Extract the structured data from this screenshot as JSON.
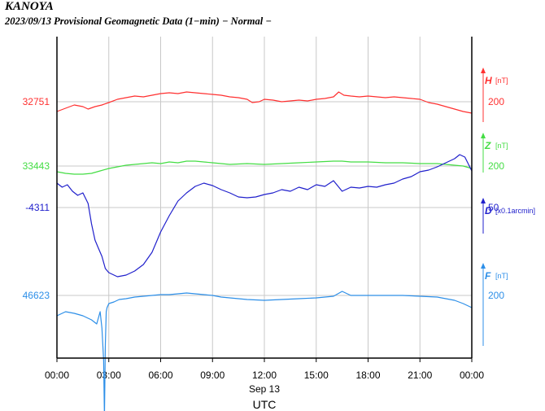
{
  "header": {
    "station": "KANOYA",
    "subtitle": "2023/09/13  Provisional Geomagnetic Data (1−min)  − Normal −"
  },
  "chart_data": {
    "type": "line",
    "x_ticks": [
      "00:00",
      "03:00",
      "06:00",
      "09:00",
      "12:00",
      "15:00",
      "18:00",
      "21:00",
      "00:00"
    ],
    "date_label": "Sep 13",
    "xlabel": "UTC",
    "grid": true,
    "series": [
      {
        "name": "H",
        "unit": "[nT]",
        "color": "#ff3030",
        "left_label": "32751",
        "scale_label": "200",
        "x": [
          0,
          0.5,
          1,
          1.5,
          1.8,
          2.2,
          2.6,
          3,
          3.5,
          4,
          4.5,
          5,
          5.5,
          6,
          6.5,
          7,
          7.5,
          8,
          8.5,
          9,
          9.5,
          10,
          10.5,
          11,
          11.3,
          11.7,
          12,
          12.5,
          13,
          13.5,
          14,
          14.5,
          15,
          15.5,
          16,
          16.3,
          16.6,
          17,
          17.5,
          18,
          18.5,
          19,
          19.5,
          20,
          20.5,
          21,
          21.5,
          22,
          22.5,
          23,
          23.5,
          24
        ],
        "y": [
          -12,
          -8,
          -4,
          -6,
          -9,
          -6,
          -4,
          -1,
          3,
          5,
          7,
          6,
          8,
          10,
          11,
          10,
          12,
          11,
          10,
          9,
          8,
          6,
          5,
          3,
          -1,
          0,
          3,
          2,
          0,
          1,
          2,
          1,
          3,
          4,
          6,
          12,
          8,
          7,
          6,
          7,
          6,
          5,
          6,
          5,
          4,
          3,
          -1,
          -3,
          -6,
          -9,
          -12,
          -14
        ]
      },
      {
        "name": "Z",
        "unit": "[nT]",
        "color": "#44dd44",
        "left_label": "33443",
        "scale_label": "200",
        "x": [
          0,
          0.5,
          1,
          1.5,
          2,
          2.5,
          3,
          3.5,
          4,
          4.5,
          5,
          5.5,
          6,
          6.5,
          7,
          7.5,
          8,
          8.5,
          9,
          9.5,
          10,
          11,
          12,
          13,
          14,
          15,
          16,
          16.5,
          17,
          18,
          19,
          20,
          21,
          22,
          22.5,
          23,
          23.5,
          24
        ],
        "y": [
          -7,
          -9,
          -10,
          -10,
          -9,
          -6,
          -3,
          -1,
          1,
          2,
          3,
          4,
          3,
          5,
          4,
          6,
          6,
          5,
          4,
          3,
          2,
          3,
          2,
          3,
          4,
          5,
          6,
          6,
          5,
          5,
          4,
          4,
          3,
          3,
          2,
          1,
          0,
          -3
        ]
      },
      {
        "name": "D",
        "unit": "[x0.1arcmin]",
        "color": "#2020cc",
        "left_label": "-4311",
        "scale_label": "50",
        "x": [
          0,
          0.3,
          0.6,
          0.9,
          1.2,
          1.5,
          1.8,
          2,
          2.2,
          2.4,
          2.6,
          2.8,
          3,
          3.5,
          4,
          4.5,
          5,
          5.5,
          6,
          6.5,
          7,
          7.5,
          8,
          8.5,
          9,
          9.5,
          10,
          10.5,
          11,
          11.5,
          12,
          12.5,
          13,
          13.5,
          14,
          14.5,
          15,
          15.5,
          16,
          16.5,
          17,
          17.5,
          18,
          18.5,
          19,
          19.5,
          20,
          20.5,
          21,
          21.5,
          22,
          22.5,
          23,
          23.3,
          23.6,
          24
        ],
        "y": [
          30,
          25,
          28,
          20,
          15,
          18,
          5,
          -20,
          -40,
          -50,
          -60,
          -75,
          -80,
          -85,
          -83,
          -78,
          -70,
          -55,
          -30,
          -10,
          8,
          18,
          26,
          30,
          27,
          22,
          18,
          13,
          12,
          13,
          16,
          18,
          22,
          20,
          25,
          22,
          28,
          26,
          33,
          20,
          25,
          24,
          26,
          25,
          28,
          30,
          35,
          38,
          44,
          46,
          50,
          55,
          60,
          65,
          62,
          45
        ]
      },
      {
        "name": "F",
        "unit": "[nT]",
        "color": "#2d8fe8",
        "left_label": "46623",
        "scale_label": "200",
        "x": [
          0,
          0.5,
          1,
          1.5,
          2,
          2.3,
          2.5,
          2.6,
          2.7,
          2.75,
          2.8,
          2.85,
          2.9,
          3,
          3.3,
          3.6,
          4,
          4.5,
          5,
          5.5,
          6,
          6.5,
          7,
          7.5,
          8,
          8.5,
          9,
          9.5,
          10,
          11,
          12,
          13,
          14,
          15,
          16,
          16.5,
          16.8,
          17,
          18,
          19,
          20,
          21,
          22,
          22.5,
          23,
          23.5,
          24
        ],
        "y": [
          -25,
          -20,
          -22,
          -25,
          -30,
          -35,
          -20,
          -40,
          -80,
          -150,
          -60,
          -20,
          -15,
          -10,
          -8,
          -5,
          -4,
          -2,
          -1,
          0,
          1,
          1,
          2,
          3,
          2,
          1,
          0,
          -2,
          -3,
          -5,
          -6,
          -5,
          -4,
          -3,
          -1,
          5,
          2,
          0,
          0,
          0,
          0,
          -1,
          -2,
          -4,
          -6,
          -10,
          -15
        ]
      }
    ]
  }
}
